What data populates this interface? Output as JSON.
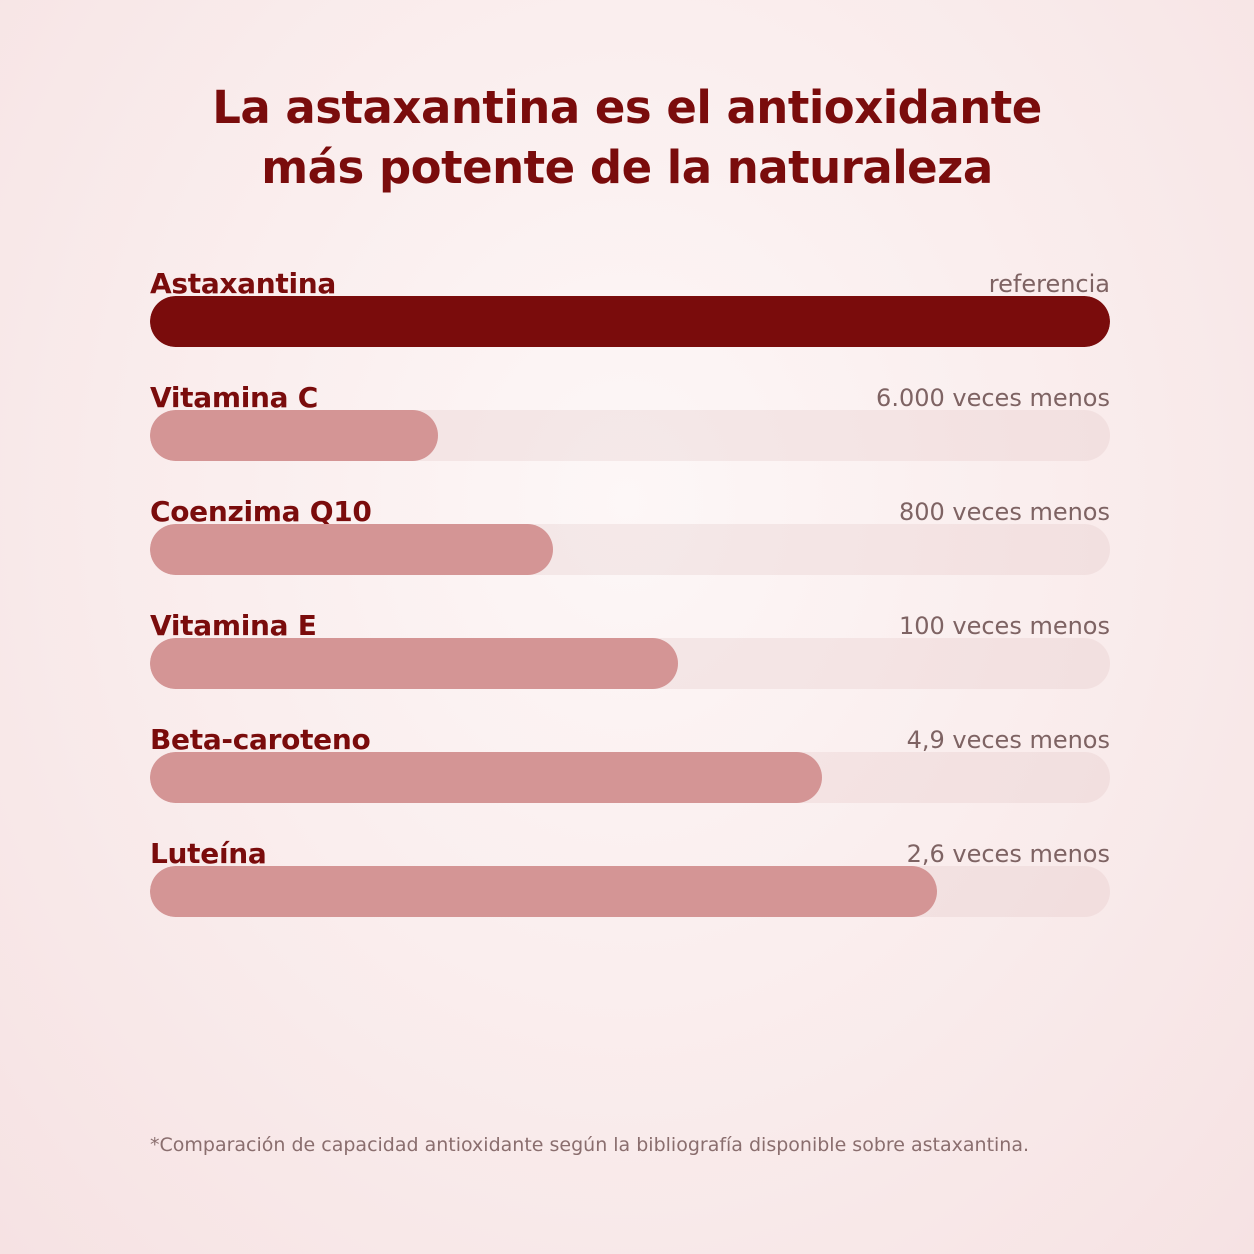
{
  "title_lines": [
    "La astaxantina es el antioxidante",
    "más potente de la naturaleza"
  ],
  "colors": {
    "title": "#7a0c0c",
    "reference_bar": "#7a0c0c",
    "comparison_bar": "#d49595",
    "track": "#f1dcdc",
    "value_text": "#7e6363"
  },
  "chart_data": {
    "type": "bar",
    "orientation": "horizontal",
    "categories": [
      "Astaxantina",
      "Vitamina C",
      "Coenzima Q10",
      "Vitamina E",
      "Beta-caroteno",
      "Luteína"
    ],
    "value_labels": [
      "referencia",
      "6.000 veces menos",
      "800 veces menos",
      "100 veces menos",
      "4,9 veces menos",
      "2,6 veces menos"
    ],
    "fill_fraction": [
      1.0,
      0.3,
      0.42,
      0.55,
      0.7,
      0.82
    ],
    "grid": false,
    "legend": "none"
  },
  "footnote": "*Comparación de capacidad antioxidante según la bibliografía disponible sobre astaxantina."
}
